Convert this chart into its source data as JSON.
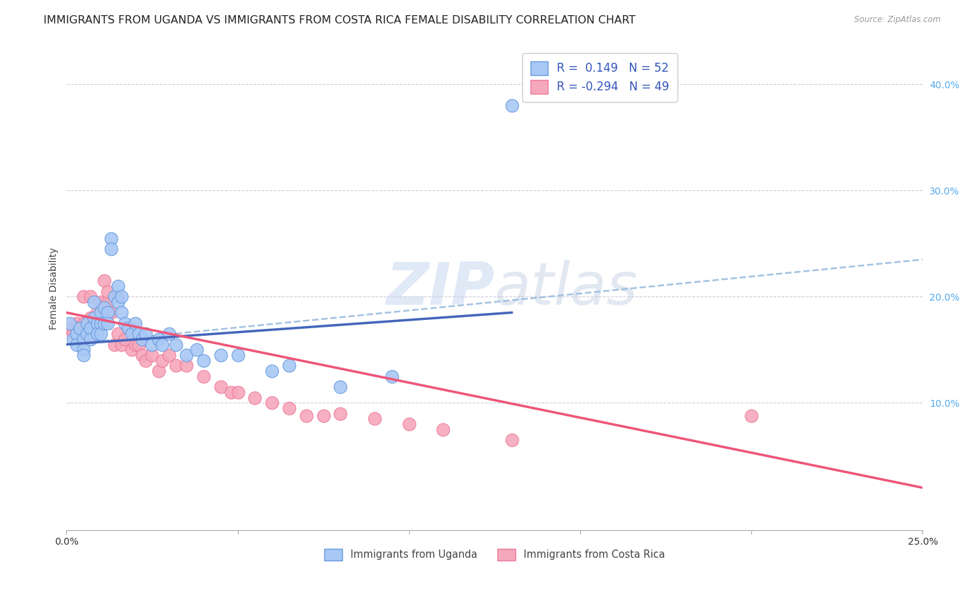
{
  "title": "IMMIGRANTS FROM UGANDA VS IMMIGRANTS FROM COSTA RICA FEMALE DISABILITY CORRELATION CHART",
  "source": "Source: ZipAtlas.com",
  "ylabel": "Female Disability",
  "xlim": [
    0.0,
    0.25
  ],
  "ylim": [
    -0.02,
    0.435
  ],
  "yticks": [
    0.1,
    0.2,
    0.3,
    0.4
  ],
  "ytick_labels": [
    "10.0%",
    "20.0%",
    "30.0%",
    "40.0%"
  ],
  "xtick_vals": [
    0.0,
    0.05,
    0.1,
    0.15,
    0.2,
    0.25
  ],
  "xtick_labels": [
    "0.0%",
    "",
    "",
    "",
    "",
    "25.0%"
  ],
  "uganda_color": "#a8c8f5",
  "costa_rica_color": "#f5a8bb",
  "uganda_edge_color": "#6699dd",
  "costa_rica_edge_color": "#ee7799",
  "uganda_line_color": "#4466bb",
  "costa_rica_line_color": "#ee5577",
  "dash_line_color": "#99bbdd",
  "R_uganda": 0.149,
  "N_uganda": 52,
  "R_costa_rica": -0.294,
  "N_costa_rica": 49,
  "watermark_zip": "ZIP",
  "watermark_atlas": "atlas",
  "background_color": "#ffffff",
  "grid_color": "#ccccdd",
  "title_fontsize": 11.5,
  "axis_label_fontsize": 10,
  "tick_fontsize": 10,
  "legend_fontsize": 12,
  "uganda_scatter_x": [
    0.001,
    0.002,
    0.003,
    0.003,
    0.004,
    0.005,
    0.005,
    0.005,
    0.006,
    0.006,
    0.007,
    0.007,
    0.008,
    0.008,
    0.009,
    0.009,
    0.01,
    0.01,
    0.01,
    0.011,
    0.011,
    0.012,
    0.012,
    0.013,
    0.013,
    0.014,
    0.015,
    0.015,
    0.016,
    0.016,
    0.017,
    0.018,
    0.019,
    0.02,
    0.021,
    0.022,
    0.023,
    0.025,
    0.027,
    0.028,
    0.03,
    0.032,
    0.035,
    0.038,
    0.04,
    0.045,
    0.05,
    0.06,
    0.065,
    0.08,
    0.095,
    0.13
  ],
  "uganda_scatter_y": [
    0.175,
    0.16,
    0.165,
    0.155,
    0.17,
    0.16,
    0.15,
    0.145,
    0.175,
    0.165,
    0.17,
    0.16,
    0.195,
    0.18,
    0.175,
    0.165,
    0.185,
    0.175,
    0.165,
    0.19,
    0.175,
    0.185,
    0.175,
    0.255,
    0.245,
    0.2,
    0.21,
    0.195,
    0.2,
    0.185,
    0.175,
    0.17,
    0.165,
    0.175,
    0.165,
    0.16,
    0.165,
    0.155,
    0.16,
    0.155,
    0.165,
    0.155,
    0.145,
    0.15,
    0.14,
    0.145,
    0.145,
    0.13,
    0.135,
    0.115,
    0.125,
    0.38
  ],
  "costa_rica_scatter_x": [
    0.001,
    0.002,
    0.003,
    0.004,
    0.005,
    0.005,
    0.006,
    0.007,
    0.007,
    0.008,
    0.009,
    0.01,
    0.01,
    0.011,
    0.012,
    0.012,
    0.013,
    0.014,
    0.015,
    0.015,
    0.016,
    0.017,
    0.018,
    0.019,
    0.02,
    0.021,
    0.022,
    0.023,
    0.025,
    0.027,
    0.028,
    0.03,
    0.032,
    0.035,
    0.04,
    0.045,
    0.048,
    0.05,
    0.055,
    0.06,
    0.065,
    0.07,
    0.075,
    0.08,
    0.09,
    0.1,
    0.11,
    0.13,
    0.2
  ],
  "costa_rica_scatter_y": [
    0.17,
    0.165,
    0.175,
    0.165,
    0.175,
    0.2,
    0.165,
    0.18,
    0.2,
    0.165,
    0.185,
    0.175,
    0.195,
    0.215,
    0.195,
    0.205,
    0.185,
    0.155,
    0.165,
    0.2,
    0.155,
    0.16,
    0.17,
    0.15,
    0.155,
    0.155,
    0.145,
    0.14,
    0.145,
    0.13,
    0.14,
    0.145,
    0.135,
    0.135,
    0.125,
    0.115,
    0.11,
    0.11,
    0.105,
    0.1,
    0.095,
    0.088,
    0.088,
    0.09,
    0.085,
    0.08,
    0.075,
    0.065,
    0.088
  ],
  "uganda_trend_x0": 0.0,
  "uganda_trend_y0": 0.155,
  "uganda_trend_x1": 0.13,
  "uganda_trend_y1": 0.185,
  "costa_trend_x0": 0.0,
  "costa_trend_y0": 0.185,
  "costa_trend_x1": 0.25,
  "costa_trend_y1": 0.02,
  "dash_trend_x0": 0.0,
  "dash_trend_y0": 0.155,
  "dash_trend_x1": 0.25,
  "dash_trend_y1": 0.235
}
